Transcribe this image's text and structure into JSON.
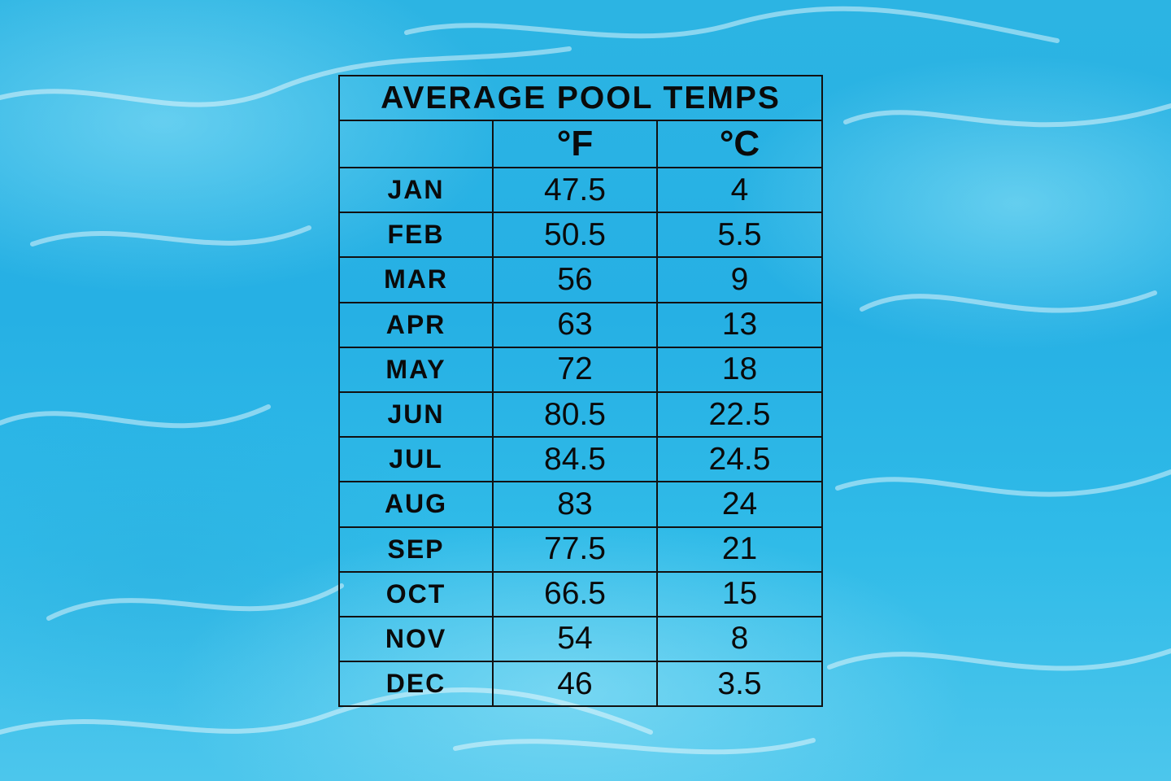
{
  "table": {
    "title": "AVERAGE POOL TEMPS",
    "columns": [
      "°F",
      "°C"
    ],
    "rows": [
      [
        "JAN",
        "47.5",
        "4"
      ],
      [
        "FEB",
        "50.5",
        "5.5"
      ],
      [
        "MAR",
        "56",
        "9"
      ],
      [
        "APR",
        "63",
        "13"
      ],
      [
        "MAY",
        "72",
        "18"
      ],
      [
        "JUN",
        "80.5",
        "22.5"
      ],
      [
        "JUL",
        "84.5",
        "24.5"
      ],
      [
        "AUG",
        "83",
        "24"
      ],
      [
        "SEP",
        "77.5",
        "21"
      ],
      [
        "OCT",
        "66.5",
        "15"
      ],
      [
        "NOV",
        "54",
        "8"
      ],
      [
        "DEC",
        "46",
        "3.5"
      ]
    ]
  }
}
